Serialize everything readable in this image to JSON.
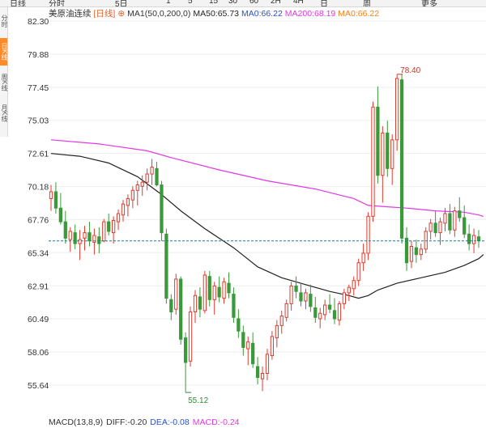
{
  "toolbar": {
    "items": [
      "日线",
      "分时",
      "5日",
      "1",
      "5",
      "15",
      "30",
      "60",
      "2H",
      "4H",
      "日",
      "周",
      "更多"
    ]
  },
  "sidebar": {
    "tabs": [
      "分时",
      "日K线",
      "周K线",
      "月K线"
    ],
    "active_index": 1
  },
  "legend": {
    "name": "美原油连续",
    "period": "[日线]",
    "ma1": "MA1(50,0,200,0)",
    "ma50": "MA50:65.73",
    "ma0a": "MA0:66.22",
    "ma200": "MA200:68.19",
    "ma0b": "MA0:66.22"
  },
  "macd": {
    "label": "MACD(13,8,9)",
    "diff": "DIFF:-0.20",
    "dea": "DEA:-0.08",
    "macd": "MACD:-0.24"
  },
  "colors": {
    "up": "#e03b2e",
    "down": "#3a9a3a",
    "ma50": "#222222",
    "ma200": "#e535e5",
    "current_price_line": "#1a7f8f",
    "grid": "#eeeeee"
  },
  "chart_data": {
    "type": "candlestick",
    "y_ticks": [
      "82.30",
      "79.88",
      "77.45",
      "75.03",
      "72.61",
      "70.18",
      "67.76",
      "65.34",
      "62.91",
      "60.49",
      "58.06",
      "55.64"
    ],
    "ylim": [
      54.5,
      82.3
    ],
    "annotations": {
      "high": "78.40",
      "low": "55.12"
    },
    "current_price": 66.2,
    "candles": [
      [
        69.3,
        70.3,
        68.4,
        69.8
      ],
      [
        69.8,
        70.5,
        68.2,
        68.6
      ],
      [
        68.6,
        69.7,
        67.4,
        67.6
      ],
      [
        67.6,
        68.4,
        66.0,
        66.4
      ],
      [
        66.3,
        67.2,
        65.4,
        66.9
      ],
      [
        66.8,
        67.4,
        65.6,
        66.0
      ],
      [
        66.0,
        67.0,
        64.8,
        66.3
      ],
      [
        66.4,
        67.3,
        65.5,
        66.8
      ],
      [
        66.8,
        67.6,
        65.8,
        66.2
      ],
      [
        66.1,
        67.1,
        65.2,
        66.6
      ],
      [
        66.5,
        67.2,
        65.3,
        66.0
      ],
      [
        66.2,
        67.8,
        66.1,
        67.6
      ],
      [
        67.6,
        68.2,
        66.6,
        66.9
      ],
      [
        66.8,
        68.0,
        66.0,
        67.7
      ],
      [
        67.6,
        68.5,
        67.0,
        68.2
      ],
      [
        68.1,
        69.2,
        67.6,
        68.9
      ],
      [
        68.8,
        69.6,
        68.0,
        69.3
      ],
      [
        69.2,
        70.2,
        68.6,
        69.9
      ],
      [
        69.9,
        70.6,
        68.8,
        70.3
      ],
      [
        70.2,
        71.0,
        69.5,
        70.5
      ],
      [
        70.5,
        71.5,
        69.9,
        71.1
      ],
      [
        71.1,
        72.2,
        70.3,
        71.6
      ],
      [
        71.5,
        72.0,
        70.2,
        70.3
      ],
      [
        70.3,
        70.6,
        66.2,
        66.8
      ],
      [
        66.7,
        67.1,
        61.6,
        62.0
      ],
      [
        61.9,
        62.3,
        60.4,
        61.0
      ],
      [
        61.2,
        63.8,
        60.8,
        63.4
      ],
      [
        63.4,
        63.6,
        58.6,
        59.0
      ],
      [
        59.1,
        59.5,
        55.1,
        57.3
      ],
      [
        57.4,
        61.4,
        57.0,
        61.0
      ],
      [
        61.0,
        62.6,
        60.2,
        62.2
      ],
      [
        62.1,
        62.8,
        60.6,
        61.2
      ],
      [
        61.1,
        64.0,
        60.9,
        63.7
      ],
      [
        63.6,
        64.0,
        61.4,
        61.9
      ],
      [
        61.9,
        63.2,
        60.8,
        62.9
      ],
      [
        62.8,
        63.6,
        61.7,
        62.1
      ],
      [
        62.0,
        63.5,
        61.6,
        63.2
      ],
      [
        63.1,
        63.9,
        62.0,
        62.4
      ],
      [
        62.3,
        62.8,
        60.2,
        60.6
      ],
      [
        60.5,
        61.2,
        59.1,
        59.6
      ],
      [
        59.5,
        60.0,
        57.8,
        58.4
      ],
      [
        58.3,
        59.2,
        57.1,
        58.8
      ],
      [
        58.7,
        59.5,
        56.9,
        57.2
      ],
      [
        57.0,
        57.7,
        55.7,
        56.2
      ],
      [
        56.1,
        57.0,
        55.2,
        56.5
      ],
      [
        56.5,
        58.3,
        56.0,
        57.9
      ],
      [
        57.8,
        59.6,
        57.5,
        59.2
      ],
      [
        59.1,
        60.4,
        58.4,
        60.0
      ],
      [
        60.0,
        61.1,
        59.4,
        60.7
      ],
      [
        60.6,
        61.9,
        60.3,
        61.6
      ],
      [
        61.6,
        63.2,
        61.1,
        62.9
      ],
      [
        62.9,
        63.6,
        62.0,
        62.5
      ],
      [
        62.4,
        63.1,
        61.4,
        61.8
      ],
      [
        61.8,
        62.7,
        61.2,
        62.4
      ],
      [
        62.3,
        63.0,
        61.0,
        61.4
      ],
      [
        61.3,
        62.1,
        60.2,
        60.6
      ],
      [
        60.5,
        61.3,
        59.8,
        60.9
      ],
      [
        60.8,
        61.9,
        60.4,
        61.5
      ],
      [
        61.5,
        62.3,
        60.9,
        61.2
      ],
      [
        61.1,
        62.0,
        60.1,
        60.5
      ],
      [
        60.4,
        61.8,
        60.0,
        61.6
      ],
      [
        61.6,
        62.7,
        61.2,
        62.4
      ],
      [
        62.4,
        63.0,
        61.8,
        62.8
      ],
      [
        62.7,
        63.6,
        62.2,
        63.3
      ],
      [
        63.3,
        64.9,
        62.9,
        64.6
      ],
      [
        64.6,
        66.0,
        64.0,
        65.3
      ],
      [
        65.3,
        68.3,
        64.8,
        68.0
      ],
      [
        68.0,
        76.4,
        67.6,
        76.0
      ],
      [
        76.0,
        77.5,
        70.4,
        71.0
      ],
      [
        71.0,
        74.6,
        69.0,
        74.1
      ],
      [
        74.1,
        75.0,
        70.9,
        71.5
      ],
      [
        71.5,
        74.0,
        70.3,
        73.6
      ],
      [
        73.6,
        78.4,
        72.8,
        78.1
      ],
      [
        78.0,
        78.4,
        66.0,
        66.4
      ],
      [
        66.4,
        67.2,
        64.0,
        64.6
      ],
      [
        64.7,
        66.2,
        64.2,
        65.8
      ],
      [
        65.7,
        66.3,
        64.6,
        65.2
      ],
      [
        65.2,
        66.0,
        64.8,
        65.6
      ],
      [
        65.6,
        67.2,
        65.3,
        66.9
      ],
      [
        66.9,
        67.8,
        66.3,
        67.5
      ],
      [
        67.5,
        68.4,
        66.5,
        66.8
      ],
      [
        66.8,
        67.9,
        65.9,
        67.6
      ],
      [
        67.5,
        68.6,
        66.9,
        68.2
      ],
      [
        68.2,
        68.9,
        66.7,
        67.0
      ],
      [
        67.0,
        68.7,
        66.5,
        68.4
      ],
      [
        68.4,
        69.4,
        67.6,
        67.9
      ],
      [
        67.9,
        68.8,
        66.4,
        66.7
      ],
      [
        66.7,
        67.4,
        65.5,
        66.0
      ],
      [
        66.0,
        67.1,
        65.3,
        66.6
      ],
      [
        66.5,
        67.0,
        65.7,
        66.2
      ]
    ],
    "ma50": [
      [
        0,
        72.6
      ],
      [
        6,
        72.4
      ],
      [
        12,
        71.9
      ],
      [
        18,
        70.9
      ],
      [
        23,
        69.6
      ],
      [
        27,
        68.4
      ],
      [
        32,
        67.1
      ],
      [
        38,
        65.7
      ],
      [
        43,
        64.3
      ],
      [
        48,
        63.5
      ],
      [
        53,
        63.0
      ],
      [
        58,
        62.5
      ],
      [
        62,
        62.2
      ],
      [
        64,
        62.0
      ],
      [
        66,
        62.2
      ],
      [
        68,
        62.6
      ],
      [
        72,
        63.1
      ],
      [
        77,
        63.5
      ],
      [
        82,
        63.9
      ],
      [
        86,
        64.4
      ],
      [
        89,
        64.9
      ],
      [
        90,
        65.2
      ]
    ],
    "ma200": [
      [
        0,
        73.6
      ],
      [
        10,
        73.3
      ],
      [
        20,
        72.8
      ],
      [
        25,
        72.3
      ],
      [
        35,
        71.4
      ],
      [
        45,
        70.6
      ],
      [
        55,
        70.0
      ],
      [
        63,
        69.3
      ],
      [
        66,
        68.8
      ],
      [
        70,
        68.7
      ],
      [
        74,
        68.6
      ],
      [
        80,
        68.4
      ],
      [
        86,
        68.3
      ],
      [
        89,
        68.1
      ],
      [
        90,
        68.0
      ]
    ]
  }
}
